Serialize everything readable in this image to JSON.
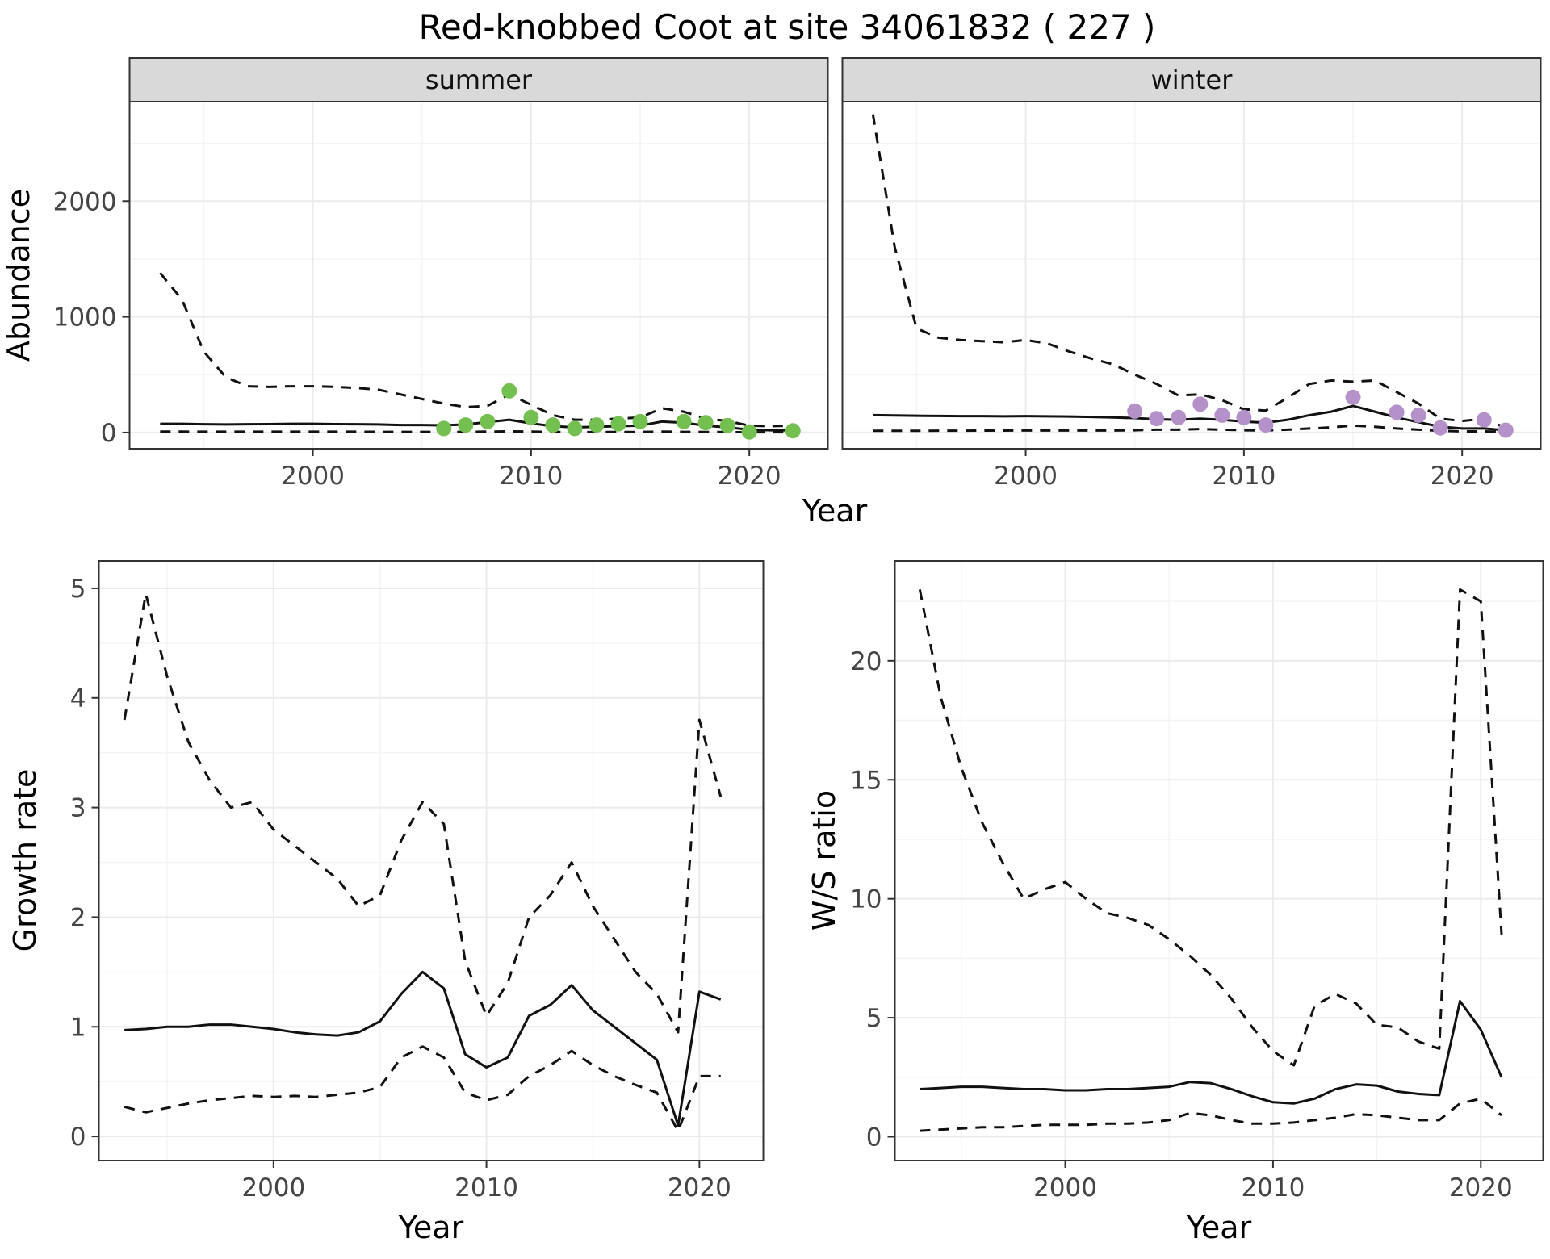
{
  "title": "Red-knobbed Coot at site 34061832 ( 227 )",
  "axis_labels": {
    "abundance": "Abundance",
    "year": "Year",
    "growth_rate": "Growth rate",
    "ws_ratio": "W/S ratio"
  },
  "facets": [
    {
      "label": "summer"
    },
    {
      "label": "winter"
    }
  ],
  "colors": {
    "summer_points": "#73bf4f",
    "winter_points": "#b591c9",
    "line": "#111111",
    "grid_major": "#ebebeb",
    "grid_minor": "#f4f4f4",
    "panel_border": "#333333"
  },
  "chart_data": [
    {
      "id": "summer",
      "type": "line",
      "facet": "summer",
      "xlabel": "Year",
      "ylabel": "Abundance",
      "xlim": [
        1991.6,
        2023.6
      ],
      "ylim": [
        -140,
        2860
      ],
      "xticks": [
        2000,
        2010,
        2020
      ],
      "yticks": [
        0,
        1000,
        2000
      ],
      "xminor": [
        1995,
        2005,
        2015
      ],
      "yminor": [
        500,
        1500,
        2500
      ],
      "x": [
        1993,
        1994,
        1995,
        1996,
        1997,
        1998,
        1999,
        2000,
        2001,
        2002,
        2003,
        2004,
        2005,
        2006,
        2007,
        2008,
        2009,
        2010,
        2011,
        2012,
        2013,
        2014,
        2015,
        2016,
        2017,
        2018,
        2019,
        2020,
        2021,
        2022
      ],
      "series": [
        {
          "name": "upper-ci",
          "style": "dashed",
          "values": [
            1380,
            1150,
            700,
            480,
            400,
            395,
            400,
            400,
            395,
            385,
            370,
            330,
            290,
            250,
            220,
            230,
            330,
            240,
            150,
            110,
            110,
            120,
            130,
            210,
            180,
            120,
            100,
            60,
            55,
            60
          ]
        },
        {
          "name": "median",
          "style": "solid",
          "values": [
            75,
            75,
            72,
            70,
            72,
            73,
            75,
            75,
            73,
            72,
            70,
            65,
            65,
            62,
            70,
            90,
            110,
            80,
            55,
            45,
            50,
            55,
            60,
            95,
            85,
            60,
            45,
            25,
            20,
            20
          ]
        },
        {
          "name": "lower-ci",
          "style": "dashed",
          "values": [
            8,
            8,
            7,
            7,
            7,
            7,
            7,
            7,
            7,
            7,
            6,
            6,
            6,
            6,
            6,
            8,
            10,
            8,
            5,
            4,
            4,
            5,
            5,
            8,
            6,
            5,
            4,
            2,
            2,
            2
          ]
        }
      ],
      "points": {
        "name": "observed-counts",
        "color": "#73bf4f",
        "x": [
          2006,
          2007,
          2008,
          2009,
          2010,
          2011,
          2012,
          2013,
          2014,
          2015,
          2017,
          2018,
          2019,
          2020,
          2022
        ],
        "y": [
          35,
          65,
          95,
          360,
          130,
          65,
          35,
          65,
          75,
          95,
          95,
          85,
          60,
          5,
          15
        ]
      }
    },
    {
      "id": "winter",
      "type": "line",
      "facet": "winter",
      "xlabel": "Year",
      "ylabel": "Abundance",
      "xlim": [
        1991.6,
        2023.6
      ],
      "ylim": [
        -140,
        2860
      ],
      "xticks": [
        2000,
        2010,
        2020
      ],
      "yticks": [
        0,
        1000,
        2000
      ],
      "xminor": [
        1995,
        2005,
        2015
      ],
      "yminor": [
        500,
        1500,
        2500
      ],
      "x": [
        1993,
        1994,
        1995,
        1996,
        1997,
        1998,
        1999,
        2000,
        2001,
        2002,
        2003,
        2004,
        2005,
        2006,
        2007,
        2008,
        2009,
        2010,
        2011,
        2012,
        2013,
        2014,
        2015,
        2016,
        2017,
        2018,
        2019,
        2020,
        2021,
        2022
      ],
      "series": [
        {
          "name": "upper-ci",
          "style": "dashed",
          "values": [
            2750,
            1600,
            900,
            820,
            800,
            790,
            780,
            800,
            770,
            700,
            640,
            590,
            500,
            420,
            320,
            330,
            280,
            200,
            190,
            300,
            420,
            450,
            440,
            450,
            350,
            250,
            120,
            100,
            120,
            40
          ]
        },
        {
          "name": "median",
          "style": "solid",
          "values": [
            150,
            148,
            145,
            143,
            142,
            142,
            140,
            142,
            140,
            138,
            135,
            130,
            125,
            115,
            110,
            120,
            110,
            95,
            85,
            110,
            150,
            180,
            230,
            180,
            130,
            90,
            50,
            35,
            35,
            20
          ]
        },
        {
          "name": "lower-ci",
          "style": "dashed",
          "values": [
            15,
            15,
            15,
            16,
            16,
            17,
            17,
            18,
            18,
            18,
            18,
            18,
            20,
            25,
            25,
            30,
            25,
            20,
            18,
            25,
            35,
            45,
            60,
            50,
            35,
            25,
            15,
            10,
            10,
            5
          ]
        }
      ],
      "points": {
        "name": "observed-counts",
        "color": "#b591c9",
        "x": [
          2005,
          2006,
          2007,
          2008,
          2009,
          2010,
          2011,
          2015,
          2017,
          2018,
          2019,
          2021,
          2022
        ],
        "y": [
          185,
          120,
          130,
          245,
          150,
          130,
          65,
          305,
          175,
          150,
          40,
          110,
          20
        ]
      }
    },
    {
      "id": "growth",
      "type": "line",
      "xlabel": "Year",
      "ylabel": "Growth rate",
      "xlim": [
        1991.8,
        2023
      ],
      "ylim": [
        -0.22,
        5.25
      ],
      "xticks": [
        2000,
        2010,
        2020
      ],
      "yticks": [
        0,
        1,
        2,
        3,
        4,
        5
      ],
      "xminor": [
        1995,
        2005,
        2015
      ],
      "yminor": [
        0.5,
        1.5,
        2.5,
        3.5,
        4.5
      ],
      "x": [
        1993,
        1994,
        1995,
        1996,
        1997,
        1998,
        1999,
        2000,
        2001,
        2002,
        2003,
        2004,
        2005,
        2006,
        2007,
        2008,
        2009,
        2010,
        2011,
        2012,
        2013,
        2014,
        2015,
        2016,
        2017,
        2018,
        2019,
        2020,
        2021
      ],
      "series": [
        {
          "name": "upper-ci",
          "style": "dashed",
          "values": [
            3.8,
            4.95,
            4.2,
            3.6,
            3.25,
            3.0,
            3.05,
            2.8,
            2.65,
            2.5,
            2.35,
            2.1,
            2.2,
            2.7,
            3.05,
            2.85,
            1.6,
            1.1,
            1.4,
            2.0,
            2.2,
            2.5,
            2.1,
            1.8,
            1.5,
            1.3,
            0.95,
            3.8,
            3.1
          ]
        },
        {
          "name": "median",
          "style": "solid",
          "values": [
            0.97,
            0.98,
            1.0,
            1.0,
            1.02,
            1.02,
            1.0,
            0.98,
            0.95,
            0.93,
            0.92,
            0.95,
            1.05,
            1.3,
            1.5,
            1.35,
            0.75,
            0.63,
            0.72,
            1.1,
            1.2,
            1.38,
            1.15,
            1.0,
            0.85,
            0.7,
            0.1,
            1.32,
            1.25
          ]
        },
        {
          "name": "lower-ci",
          "style": "dashed",
          "values": [
            0.27,
            0.22,
            0.26,
            0.3,
            0.33,
            0.35,
            0.37,
            0.36,
            0.37,
            0.36,
            0.38,
            0.4,
            0.45,
            0.72,
            0.82,
            0.72,
            0.4,
            0.33,
            0.38,
            0.55,
            0.65,
            0.78,
            0.65,
            0.55,
            0.47,
            0.4,
            0.05,
            0.55,
            0.55
          ]
        }
      ]
    },
    {
      "id": "ws",
      "type": "line",
      "xlabel": "Year",
      "ylabel": "W/S ratio",
      "xlim": [
        1991.8,
        2023
      ],
      "ylim": [
        -1.0,
        24.2
      ],
      "xticks": [
        2000,
        2010,
        2020
      ],
      "yticks": [
        0,
        5,
        10,
        15,
        20
      ],
      "xminor": [
        1995,
        2005,
        2015
      ],
      "yminor": [
        2.5,
        7.5,
        12.5,
        17.5,
        22.5
      ],
      "x": [
        1993,
        1994,
        1995,
        1996,
        1997,
        1998,
        1999,
        2000,
        2001,
        2002,
        2003,
        2004,
        2005,
        2006,
        2007,
        2008,
        2009,
        2010,
        2011,
        2012,
        2013,
        2014,
        2015,
        2016,
        2017,
        2018,
        2019,
        2020,
        2021
      ],
      "series": [
        {
          "name": "upper-ci",
          "style": "dashed",
          "values": [
            23,
            18.5,
            15.5,
            13.2,
            11.5,
            10.0,
            10.4,
            10.7,
            10.0,
            9.4,
            9.2,
            8.9,
            8.3,
            7.6,
            6.8,
            5.8,
            4.6,
            3.6,
            3.0,
            5.5,
            6.0,
            5.6,
            4.7,
            4.6,
            4.0,
            3.7,
            23.0,
            22.5,
            8.5
          ]
        },
        {
          "name": "median",
          "style": "solid",
          "values": [
            2.0,
            2.05,
            2.1,
            2.1,
            2.05,
            2.0,
            2.0,
            1.95,
            1.95,
            2.0,
            2.0,
            2.05,
            2.1,
            2.3,
            2.25,
            2.0,
            1.7,
            1.45,
            1.4,
            1.6,
            2.0,
            2.2,
            2.15,
            1.9,
            1.8,
            1.75,
            5.7,
            4.5,
            2.5
          ]
        },
        {
          "name": "lower-ci",
          "style": "dashed",
          "values": [
            0.25,
            0.3,
            0.35,
            0.4,
            0.4,
            0.45,
            0.5,
            0.5,
            0.5,
            0.55,
            0.55,
            0.6,
            0.7,
            1.0,
            0.9,
            0.7,
            0.55,
            0.55,
            0.6,
            0.7,
            0.8,
            0.95,
            0.9,
            0.8,
            0.7,
            0.7,
            1.4,
            1.6,
            0.9
          ]
        }
      ]
    }
  ]
}
